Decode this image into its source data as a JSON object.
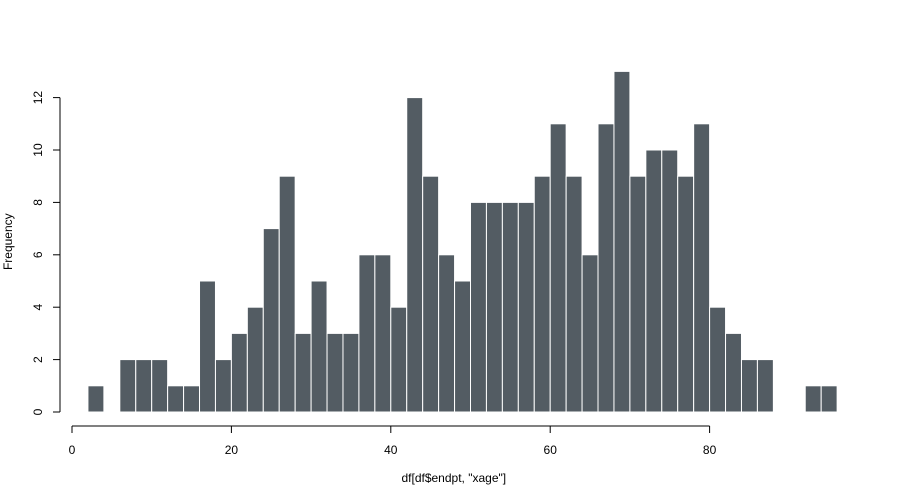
{
  "chart_data": {
    "type": "bar",
    "title": "",
    "xlabel": "df[df$endpt, \"xage\"]",
    "ylabel": "Frequency",
    "bin_width": 2,
    "bins_start": [
      2,
      4,
      6,
      8,
      10,
      12,
      14,
      16,
      18,
      20,
      22,
      24,
      26,
      28,
      30,
      32,
      34,
      36,
      38,
      40,
      42,
      44,
      46,
      48,
      50,
      52,
      54,
      56,
      58,
      60,
      62,
      64,
      66,
      68,
      70,
      72,
      74,
      76,
      78,
      80,
      82,
      84,
      86,
      88,
      90,
      92,
      94
    ],
    "values": [
      1,
      0,
      2,
      2,
      2,
      1,
      1,
      5,
      2,
      3,
      4,
      7,
      9,
      3,
      5,
      3,
      3,
      6,
      6,
      4,
      12,
      9,
      6,
      5,
      8,
      8,
      8,
      8,
      9,
      11,
      9,
      6,
      11,
      13,
      9,
      10,
      10,
      9,
      11,
      4,
      3,
      2,
      2,
      0,
      0,
      1,
      1
    ],
    "xlim": [
      0,
      96
    ],
    "ylim": [
      0,
      13
    ],
    "x_ticks": [
      0,
      20,
      40,
      60,
      80
    ],
    "y_ticks": [
      0,
      2,
      4,
      6,
      8,
      10,
      12
    ],
    "grid": false,
    "bar_color": "#535c63",
    "bar_edge_color": "#ffffff"
  }
}
